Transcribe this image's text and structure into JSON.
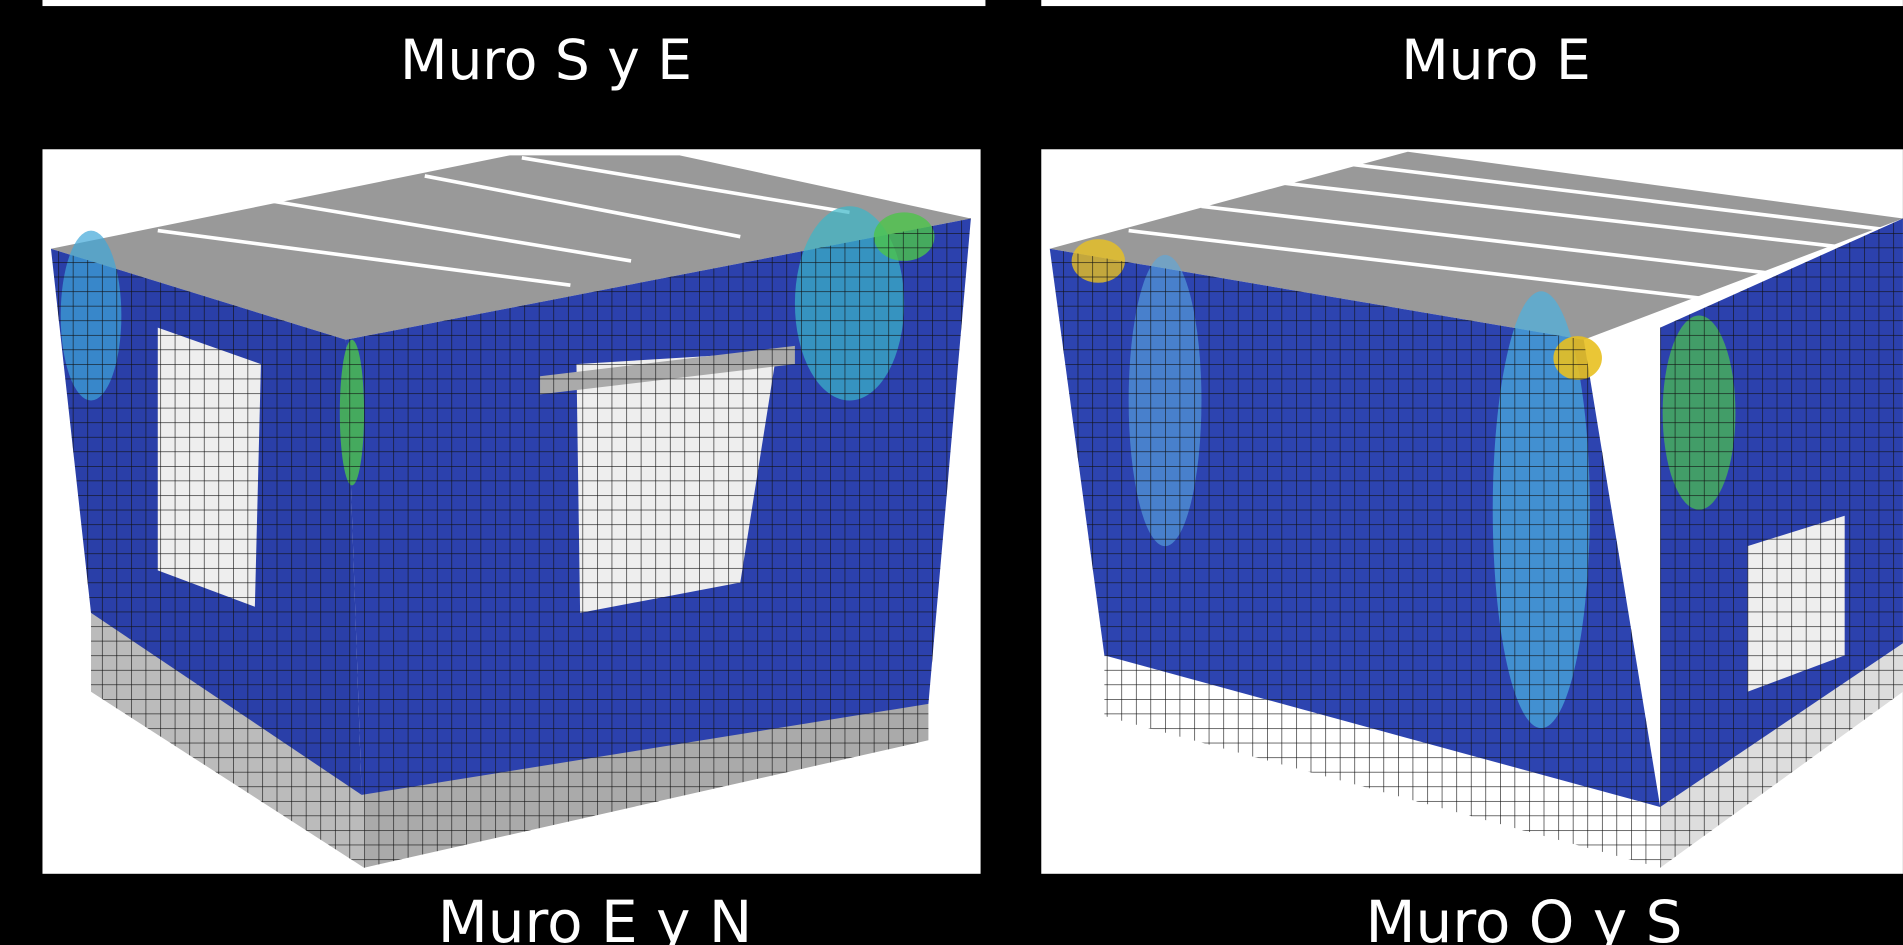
{
  "panels": [
    {
      "label": "Muro S y E"
    },
    {
      "label": "Muro E"
    },
    {
      "label": "Muro E y N"
    },
    {
      "label": "Muro O y S"
    }
  ]
}
